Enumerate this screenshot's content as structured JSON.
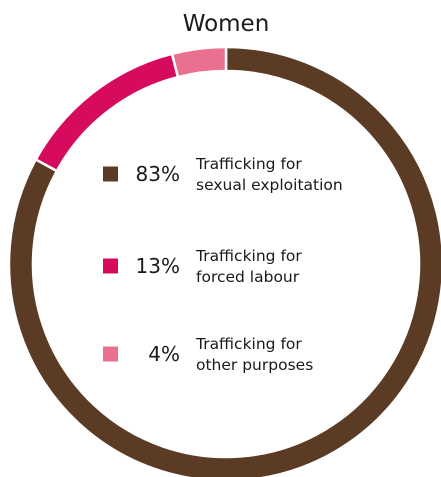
{
  "chart_data": {
    "type": "pie",
    "title": "Women",
    "categories": [
      "Trafficking for sexual exploitation",
      "Trafficking for forced labour",
      "Trafficking for other purposes"
    ],
    "values": [
      83,
      13,
      4
    ],
    "value_labels": [
      "83%",
      "13%",
      "4%"
    ],
    "legend_lines": [
      [
        "Trafficking for",
        "sexual exploitation"
      ],
      [
        "Trafficking for",
        "forced labour"
      ],
      [
        "Trafficking for",
        "other purposes"
      ]
    ],
    "colors": [
      "#5b3b24",
      "#d60b5e",
      "#e9718f"
    ],
    "legend_placement": "inside-center",
    "donut": true
  }
}
